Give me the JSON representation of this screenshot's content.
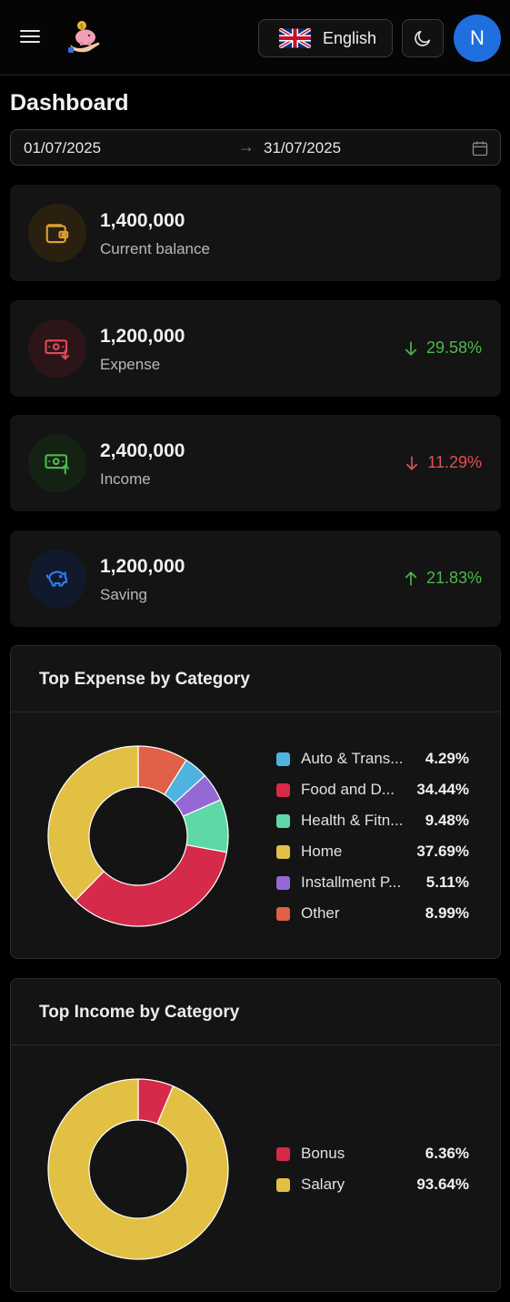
{
  "header": {
    "menu_icon": "hamburger-menu-icon",
    "logo_icon": "piggy-bank-hand-icon",
    "language": {
      "label": "English",
      "flag_icon": "uk-flag-icon"
    },
    "theme_icon": "moon-icon",
    "avatar_initial": "N"
  },
  "page_title": "Dashboard",
  "date_range": {
    "start": "01/07/2025",
    "separator": "→",
    "end": "31/07/2025",
    "icon": "calendar-icon"
  },
  "stats": [
    {
      "value": "1,400,000",
      "label": "Current balance",
      "icon": "wallet-icon",
      "color": "#e0a030",
      "change": ""
    },
    {
      "value": "1,200,000",
      "label": "Expense",
      "icon": "money-down-icon",
      "color": "#e04a5a",
      "change": "29.58%",
      "direction": "down",
      "change_color": "#4cb84a"
    },
    {
      "value": "2,400,000",
      "label": "Income",
      "icon": "money-up-icon",
      "color": "#4cb84a",
      "change": "11.29%",
      "direction": "down",
      "change_color": "#e05050"
    },
    {
      "value": "1,200,000",
      "label": "Saving",
      "icon": "piggy-bank-icon",
      "color": "#2f7cf0",
      "change": "21.83%",
      "direction": "up",
      "change_color": "#4cb84a"
    }
  ],
  "expense_chart": {
    "title": "Top Expense by Category",
    "chart_data": {
      "type": "pie",
      "categories": [
        "Auto & Trans...",
        "Food and D...",
        "Health & Fitn...",
        "Home",
        "Installment P...",
        "Other"
      ],
      "values": [
        4.29,
        34.44,
        9.48,
        37.69,
        5.11,
        8.99
      ],
      "labels": [
        "4.29%",
        "34.44%",
        "9.48%",
        "37.69%",
        "5.11%",
        "8.99%"
      ],
      "colors": [
        "#4fb3e0",
        "#d62a4a",
        "#5ed8a6",
        "#e2c043",
        "#9469d6",
        "#e06048"
      ],
      "order": [
        5,
        0,
        4,
        2,
        1,
        3
      ],
      "legend": "right"
    }
  },
  "income_chart": {
    "title": "Top Income by Category",
    "chart_data": {
      "type": "pie",
      "categories": [
        "Bonus",
        "Salary"
      ],
      "values": [
        6.36,
        93.64
      ],
      "labels": [
        "6.36%",
        "93.64%"
      ],
      "colors": [
        "#d62a4a",
        "#e2c043"
      ],
      "order": [
        0,
        1
      ],
      "legend": "right"
    }
  }
}
